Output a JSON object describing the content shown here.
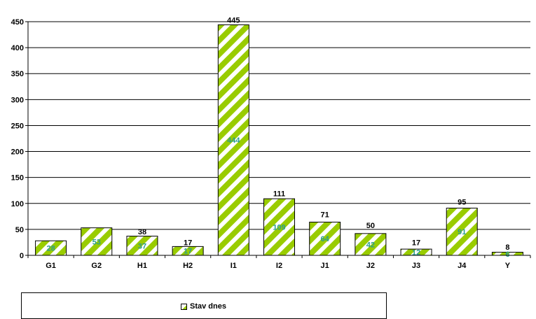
{
  "chart_data": {
    "type": "bar",
    "categories": [
      "G1",
      "G2",
      "H1",
      "H2",
      "I1",
      "I2",
      "J1",
      "J2",
      "J3",
      "J4",
      "Y"
    ],
    "series": [
      {
        "name": "Stav dnes",
        "values": [
          28,
          53,
          37,
          17,
          444,
          109,
          64,
          42,
          12,
          91,
          6
        ]
      }
    ],
    "labels_above": [
      "",
      "",
      "38",
      "17",
      "445",
      "111",
      "71",
      "50",
      "17",
      "95",
      "8"
    ],
    "labels_inside": [
      "28",
      "53",
      "37",
      "17",
      "444",
      "109",
      "64",
      "42",
      "12",
      "91",
      "6"
    ],
    "y_ticks": [
      0,
      50,
      100,
      150,
      200,
      250,
      300,
      350,
      400,
      450
    ],
    "ylim": [
      0,
      450
    ],
    "grid": true,
    "legend_position": "bottom",
    "colors": {
      "bar_fill": "#99cc00",
      "stripe": "#ffffff",
      "bar_border": "#000000",
      "inside_label": "#2a9d8f"
    }
  },
  "legend": {
    "label": "Stav dnes"
  }
}
